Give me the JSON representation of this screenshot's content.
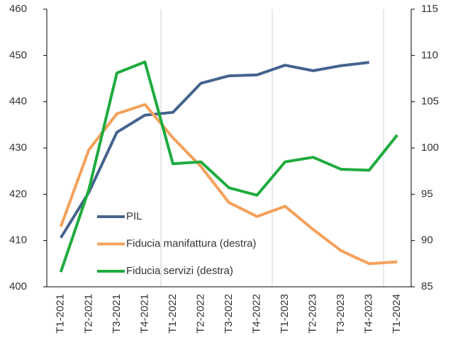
{
  "chart_data": {
    "type": "line",
    "categories": [
      "T1-2021",
      "T2-2021",
      "T3-2021",
      "T4-2021",
      "T1-2022",
      "T2-2022",
      "T3-2022",
      "T4-2022",
      "T1-2023",
      "T2-2023",
      "T3-2023",
      "T4-2023",
      "T1-2024"
    ],
    "series": [
      {
        "name": "PIL",
        "color": "#45638e",
        "values": [
          410.6,
          420.4,
          433.4,
          437.1,
          437.7,
          444.0,
          445.6,
          445.8,
          447.9,
          446.7,
          447.8,
          448.5,
          null
        ]
      },
      {
        "name": "Fiducia manifattura (destra)",
        "color": "#f5a05a",
        "axis": "y2",
        "values": [
          91.5,
          99.8,
          103.7,
          104.7,
          101.1,
          98.0,
          94.1,
          92.6,
          93.7,
          91.2,
          88.9,
          87.5,
          87.7
        ]
      },
      {
        "name": "Fiducia servizi (destra)",
        "color": "#1eab3e",
        "axis": "y2",
        "values": [
          86.6,
          95.5,
          108.1,
          109.3,
          98.3,
          98.5,
          95.7,
          94.9,
          98.5,
          99.0,
          97.7,
          97.6,
          101.4
        ]
      }
    ],
    "ylim": [
      400,
      460
    ],
    "yticks": [
      400,
      410,
      420,
      430,
      440,
      450,
      460
    ],
    "y2lim": [
      85,
      115
    ],
    "y2ticks": [
      85,
      90,
      95,
      100,
      105,
      110,
      115
    ]
  }
}
